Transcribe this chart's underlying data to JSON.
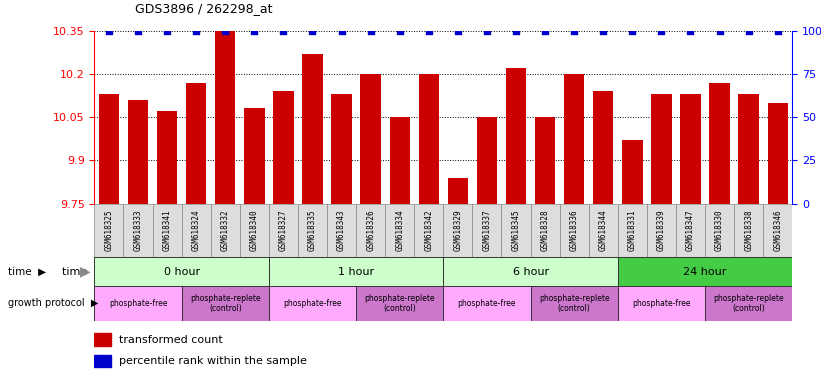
{
  "title": "GDS3896 / 262298_at",
  "samples": [
    "GSM618325",
    "GSM618333",
    "GSM618341",
    "GSM618324",
    "GSM618332",
    "GSM618340",
    "GSM618327",
    "GSM618335",
    "GSM618343",
    "GSM618326",
    "GSM618334",
    "GSM618342",
    "GSM618329",
    "GSM618337",
    "GSM618345",
    "GSM618328",
    "GSM618336",
    "GSM618344",
    "GSM618331",
    "GSM618339",
    "GSM618347",
    "GSM618330",
    "GSM618338",
    "GSM618346"
  ],
  "values": [
    10.13,
    10.11,
    10.07,
    10.17,
    10.35,
    10.08,
    10.14,
    10.27,
    10.13,
    10.2,
    10.05,
    10.2,
    9.84,
    10.05,
    10.22,
    10.05,
    10.2,
    10.14,
    9.97,
    10.13,
    10.13,
    10.17,
    10.13,
    10.1
  ],
  "percentile": [
    100,
    100,
    100,
    100,
    100,
    100,
    100,
    100,
    100,
    100,
    100,
    100,
    100,
    100,
    100,
    100,
    100,
    100,
    100,
    100,
    100,
    100,
    100,
    100
  ],
  "ylim": [
    9.75,
    10.35
  ],
  "yticks_left": [
    9.75,
    9.9,
    10.05,
    10.2,
    10.35
  ],
  "yticks_right": [
    0,
    25,
    50,
    75,
    100
  ],
  "bar_color": "#cc0000",
  "dot_color": "#0000cc",
  "time_groups": [
    {
      "label": "0 hour",
      "start": 0,
      "end": 6,
      "color": "#ccffcc"
    },
    {
      "label": "1 hour",
      "start": 6,
      "end": 12,
      "color": "#ccffcc"
    },
    {
      "label": "6 hour",
      "start": 12,
      "end": 18,
      "color": "#ccffcc"
    },
    {
      "label": "24 hour",
      "start": 18,
      "end": 24,
      "color": "#44cc44"
    }
  ],
  "protocol_groups": [
    {
      "label": "phosphate-free",
      "start": 0,
      "end": 3,
      "color": "#ffaaff"
    },
    {
      "label": "phosphate-replete\n(control)",
      "start": 3,
      "end": 6,
      "color": "#cc77cc"
    },
    {
      "label": "phosphate-free",
      "start": 6,
      "end": 9,
      "color": "#ffaaff"
    },
    {
      "label": "phosphate-replete\n(control)",
      "start": 9,
      "end": 12,
      "color": "#cc77cc"
    },
    {
      "label": "phosphate-free",
      "start": 12,
      "end": 15,
      "color": "#ffaaff"
    },
    {
      "label": "phosphate-replete\n(control)",
      "start": 15,
      "end": 18,
      "color": "#cc77cc"
    },
    {
      "label": "phosphate-free",
      "start": 18,
      "end": 21,
      "color": "#ffaaff"
    },
    {
      "label": "phosphate-replete\n(control)",
      "start": 21,
      "end": 24,
      "color": "#cc77cc"
    }
  ]
}
